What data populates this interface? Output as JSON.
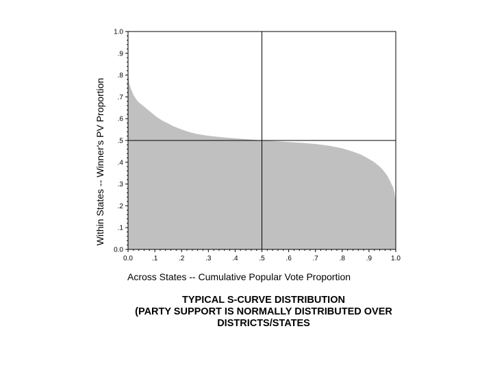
{
  "chart_data": {
    "type": "area",
    "xlabel": "Across States -- Cumulative Popular Vote Proportion",
    "ylabel": "Within States -- Winner's PV Proportion",
    "xlim": [
      0,
      1
    ],
    "ylim": [
      0,
      1
    ],
    "x_ticks": [
      "0.0",
      ".1",
      ".2",
      ".3",
      ".4",
      ".5",
      ".6",
      ".7",
      ".8",
      ".9",
      "1.0"
    ],
    "y_ticks": [
      "0.0",
      ".1",
      ".2",
      ".3",
      ".4",
      ".5",
      ".6",
      ".7",
      ".8",
      ".9",
      "1.0"
    ],
    "reference_lines": {
      "x": 0.5,
      "y": 0.5
    },
    "fill_color": "#c0c0c0",
    "grid": false,
    "series": [
      {
        "x": [
          0.0,
          0.005,
          0.01,
          0.02,
          0.03,
          0.04,
          0.05,
          0.07,
          0.09,
          0.11,
          0.13,
          0.15,
          0.17,
          0.19,
          0.21,
          0.23,
          0.25,
          0.28,
          0.31,
          0.35,
          0.4,
          0.45,
          0.5,
          0.55,
          0.6,
          0.65,
          0.7,
          0.75,
          0.8,
          0.84,
          0.87,
          0.9,
          0.92,
          0.94,
          0.95,
          0.96,
          0.97,
          0.98,
          0.99,
          0.995,
          1.0
        ],
        "values": [
          0.81,
          0.76,
          0.74,
          0.71,
          0.69,
          0.675,
          0.665,
          0.645,
          0.625,
          0.605,
          0.59,
          0.578,
          0.565,
          0.555,
          0.546,
          0.538,
          0.532,
          0.525,
          0.52,
          0.515,
          0.51,
          0.505,
          0.5,
          0.497,
          0.493,
          0.489,
          0.484,
          0.476,
          0.464,
          0.449,
          0.435,
          0.415,
          0.4,
          0.38,
          0.368,
          0.352,
          0.335,
          0.31,
          0.285,
          0.26,
          0.22
        ]
      }
    ]
  },
  "caption": {
    "line1": "TYPICAL S-CURVE DISTRIBUTION",
    "line2": "(PARTY SUPPORT IS NORMALLY DISTRIBUTED OVER",
    "line3": "DISTRICTS/STATES"
  }
}
